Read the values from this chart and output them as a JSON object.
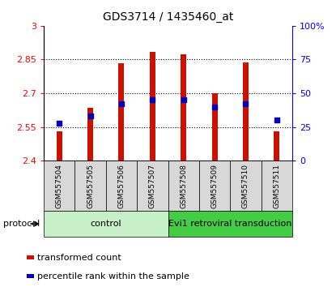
{
  "title": "GDS3714 / 1435460_at",
  "samples": [
    "GSM557504",
    "GSM557505",
    "GSM557506",
    "GSM557507",
    "GSM557508",
    "GSM557509",
    "GSM557510",
    "GSM557511"
  ],
  "transformed_count": [
    2.53,
    2.635,
    2.835,
    2.885,
    2.875,
    2.7,
    2.837,
    2.53
  ],
  "percentile_rank": [
    28,
    33,
    42,
    45,
    45,
    40,
    42,
    30
  ],
  "bar_base": 2.4,
  "ylim_left": [
    2.4,
    3.0
  ],
  "ylim_right": [
    0,
    100
  ],
  "yticks_left": [
    2.4,
    2.55,
    2.7,
    2.85,
    3.0
  ],
  "yticks_right": [
    0,
    25,
    50,
    75,
    100
  ],
  "ytick_labels_left": [
    "2.4",
    "2.55",
    "2.7",
    "2.85",
    "3"
  ],
  "ytick_labels_right": [
    "0",
    "25",
    "50",
    "75",
    "100%"
  ],
  "grid_lines": [
    2.55,
    2.7,
    2.85
  ],
  "bar_color": "#cc1100",
  "dot_color": "#0000bb",
  "bar_width": 0.18,
  "control_color": "#c8f0c8",
  "evi_color": "#44cc44",
  "control_label": "control",
  "evi_label": "Evi1 retroviral transduction",
  "protocol_label": "protocol",
  "legend_bar_label": "transformed count",
  "legend_dot_label": "percentile rank within the sample",
  "cell_color": "#d8d8d8",
  "figsize": [
    4.15,
    3.54
  ],
  "dpi": 100
}
